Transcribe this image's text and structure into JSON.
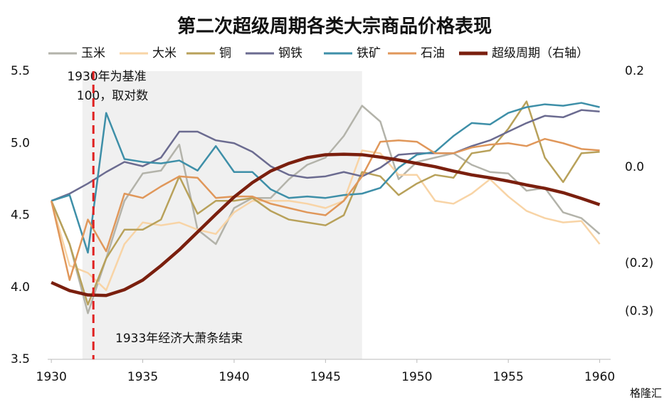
{
  "chart_data": {
    "type": "line",
    "title": "第二次超级周期各类大宗商品价格表现",
    "x": [
      1930,
      1931,
      1932,
      1933,
      1934,
      1935,
      1936,
      1937,
      1938,
      1939,
      1940,
      1941,
      1942,
      1943,
      1944,
      1945,
      1946,
      1947,
      1948,
      1949,
      1950,
      1951,
      1952,
      1953,
      1954,
      1955,
      1956,
      1957,
      1958,
      1959,
      1960
    ],
    "xlim": [
      1929.8,
      1960.6
    ],
    "xticks": [
      1930,
      1935,
      1940,
      1945,
      1950,
      1955,
      1960
    ],
    "ylim": [
      3.5,
      5.5
    ],
    "yticks": [
      3.5,
      {
        "value": 4.0,
        "label": "4.0"
      },
      4.5,
      {
        "value": 5.0,
        "label": "5.0"
      },
      5.5
    ],
    "y2lim": [
      -0.4,
      0.2
    ],
    "y2ticks": [
      0.2,
      {
        "value": 0,
        "label": "0.0"
      },
      {
        "value": -0.2,
        "label": "(0.2)"
      },
      {
        "value": -0.3,
        "label": "(0.3)"
      }
    ],
    "y2_negative_tick_color": "#e02020",
    "legend": "top",
    "shaded_x": [
      1931.7,
      1947
    ],
    "marker_x": 1932.3,
    "annotations": [
      "1930年为基准",
      "100，取对数",
      "1933年经济大萧条结束"
    ],
    "watermark": "格隆汇",
    "series": [
      {
        "name": "玉米",
        "color": "#b3b3aa",
        "values": [
          4.6,
          4.3,
          3.82,
          4.2,
          4.6,
          4.79,
          4.81,
          4.99,
          4.4,
          4.3,
          4.55,
          4.62,
          4.62,
          4.75,
          4.85,
          4.9,
          5.05,
          5.26,
          5.15,
          4.75,
          4.87,
          4.9,
          4.93,
          4.85,
          4.8,
          4.79,
          4.67,
          4.69,
          4.52,
          4.48,
          4.37
        ]
      },
      {
        "name": "大米",
        "color": "#f8d4a6",
        "values": [
          4.6,
          4.15,
          4.1,
          3.98,
          4.3,
          4.45,
          4.43,
          4.45,
          4.4,
          4.37,
          4.52,
          4.6,
          4.6,
          4.6,
          4.58,
          4.55,
          4.6,
          4.95,
          4.93,
          4.78,
          4.78,
          4.6,
          4.58,
          4.65,
          4.75,
          4.63,
          4.53,
          4.48,
          4.45,
          4.46,
          4.3
        ]
      },
      {
        "name": "铜",
        "color": "#b8a15a",
        "values": [
          4.6,
          4.3,
          3.88,
          4.2,
          4.4,
          4.4,
          4.47,
          4.77,
          4.51,
          4.6,
          4.6,
          4.62,
          4.53,
          4.47,
          4.45,
          4.43,
          4.5,
          4.8,
          4.77,
          4.64,
          4.72,
          4.78,
          4.76,
          4.93,
          4.95,
          5.1,
          5.29,
          4.9,
          4.73,
          4.93,
          4.94
        ]
      },
      {
        "name": "钢铁",
        "color": "#6b6b90",
        "values": [
          4.6,
          4.65,
          4.72,
          4.8,
          4.87,
          4.84,
          4.9,
          5.08,
          5.08,
          5.02,
          5.0,
          4.94,
          4.84,
          4.78,
          4.76,
          4.77,
          4.8,
          4.77,
          4.83,
          4.92,
          4.93,
          4.93,
          4.93,
          4.98,
          5.02,
          5.08,
          5.14,
          5.19,
          5.18,
          5.23,
          5.22
        ]
      },
      {
        "name": "铁矿",
        "color": "#3e8fa8",
        "values": [
          4.6,
          4.64,
          4.24,
          5.21,
          4.89,
          4.87,
          4.86,
          4.88,
          4.81,
          4.98,
          4.8,
          4.8,
          4.68,
          4.62,
          4.63,
          4.62,
          4.64,
          4.65,
          4.69,
          4.83,
          4.92,
          4.94,
          5.05,
          5.14,
          5.13,
          5.21,
          5.25,
          5.27,
          5.26,
          5.28,
          5.25
        ]
      },
      {
        "name": "石油",
        "color": "#e0975a",
        "values": [
          4.6,
          4.05,
          4.47,
          4.25,
          4.65,
          4.62,
          4.7,
          4.77,
          4.76,
          4.62,
          4.63,
          4.63,
          4.58,
          4.55,
          4.52,
          4.5,
          4.6,
          4.77,
          5.01,
          5.02,
          5.01,
          4.93,
          4.93,
          4.97,
          4.99,
          5.0,
          4.98,
          5.03,
          5.0,
          4.96,
          4.95
        ]
      },
      {
        "name": "超级周期（右轴）",
        "color": "#7a1f0e",
        "axis": "y2",
        "values": [
          -0.24,
          -0.257,
          -0.266,
          -0.267,
          -0.255,
          -0.235,
          -0.205,
          -0.172,
          -0.135,
          -0.098,
          -0.062,
          -0.032,
          -0.008,
          0.008,
          0.02,
          0.026,
          0.027,
          0.026,
          0.021,
          0.015,
          0.008,
          0.001,
          -0.008,
          -0.016,
          -0.022,
          -0.029,
          -0.037,
          -0.044,
          -0.053,
          -0.065,
          -0.078
        ]
      }
    ]
  }
}
